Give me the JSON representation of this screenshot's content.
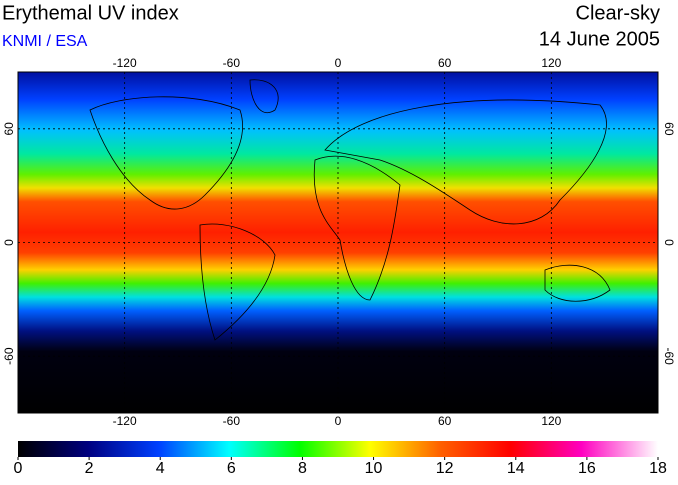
{
  "header": {
    "title": "Erythemal UV index",
    "source": "KNMI / ESA",
    "condition": "Clear-sky",
    "date": "14 June 2005"
  },
  "map": {
    "lonlim": [
      -180,
      180
    ],
    "latlim": [
      90,
      -90
    ],
    "lon_ticks": [
      -120,
      -60,
      0,
      60,
      120
    ],
    "lat_ticks": [
      60,
      0,
      -60
    ]
  },
  "colorbar": {
    "lim": [
      0,
      18
    ],
    "ticks": [
      0,
      2,
      4,
      6,
      8,
      10,
      12,
      14,
      16,
      18
    ]
  }
}
